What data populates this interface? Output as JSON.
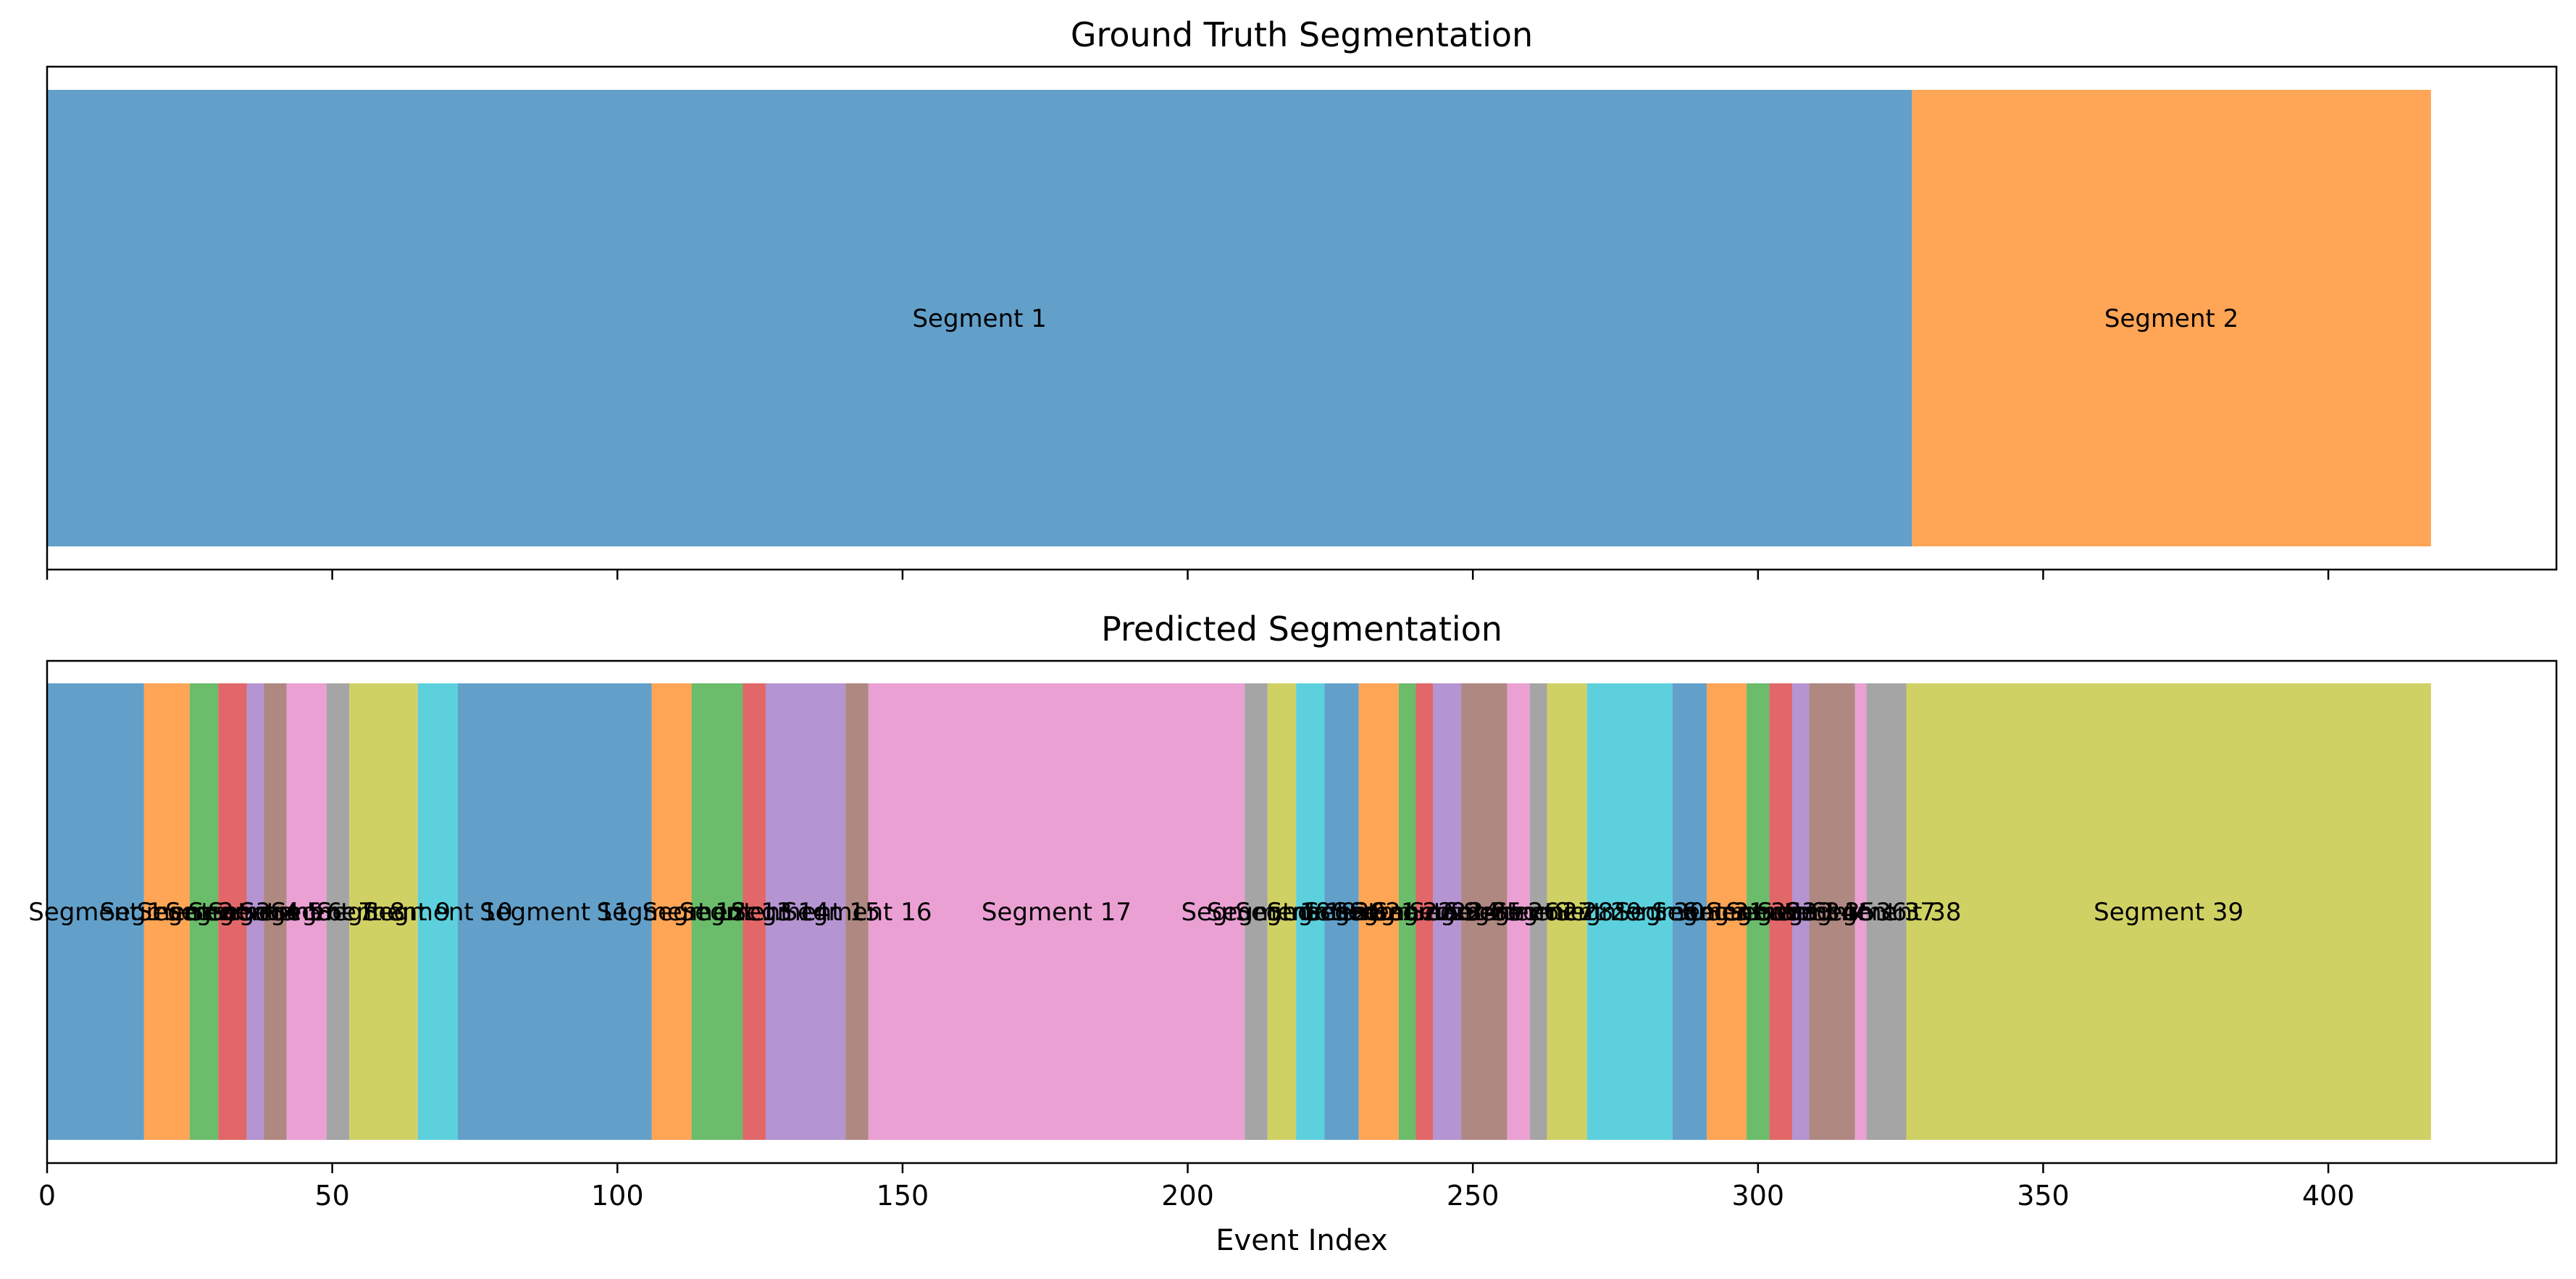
{
  "chart_data": [
    {
      "type": "bar",
      "title": "Ground Truth Segmentation",
      "xlabel": "",
      "xlim": [
        0,
        440
      ],
      "segments": [
        {
          "label": "Segment 1",
          "start": 0,
          "end": 327,
          "color": "#1f77b4"
        },
        {
          "label": "Segment 2",
          "start": 327,
          "end": 418,
          "color": "#ff7f0e"
        }
      ]
    },
    {
      "type": "bar",
      "title": "Predicted Segmentation",
      "xlabel": "Event Index",
      "xlim": [
        0,
        440
      ],
      "xticks": [
        "0",
        "50",
        "100",
        "150",
        "200",
        "250",
        "300",
        "350",
        "400"
      ],
      "segments": [
        {
          "label": "Segment 1",
          "start": 0,
          "end": 17,
          "color": "#1f77b4"
        },
        {
          "label": "Segment 2",
          "start": 17,
          "end": 25,
          "color": "#ff7f0e"
        },
        {
          "label": "Segment 3",
          "start": 25,
          "end": 30,
          "color": "#2ca02c"
        },
        {
          "label": "Segment 4",
          "start": 30,
          "end": 35,
          "color": "#d62728"
        },
        {
          "label": "Segment 5",
          "start": 35,
          "end": 38,
          "color": "#9467bd"
        },
        {
          "label": "Segment 6",
          "start": 38,
          "end": 42,
          "color": "#8c564b"
        },
        {
          "label": "Segment 7",
          "start": 42,
          "end": 49,
          "color": "#e377c2"
        },
        {
          "label": "Segment 8",
          "start": 49,
          "end": 53,
          "color": "#7f7f7f"
        },
        {
          "label": "Segment 9",
          "start": 53,
          "end": 65,
          "color": "#bcbd22"
        },
        {
          "label": "Segment 10",
          "start": 65,
          "end": 72,
          "color": "#17becf"
        },
        {
          "label": "Segment 11",
          "start": 72,
          "end": 106,
          "color": "#1f77b4"
        },
        {
          "label": "Segment 12",
          "start": 106,
          "end": 113,
          "color": "#ff7f0e"
        },
        {
          "label": "Segment 13",
          "start": 113,
          "end": 122,
          "color": "#2ca02c"
        },
        {
          "label": "Segment 14",
          "start": 122,
          "end": 126,
          "color": "#d62728"
        },
        {
          "label": "Segment 15",
          "start": 126,
          "end": 140,
          "color": "#9467bd"
        },
        {
          "label": "Segment 16",
          "start": 140,
          "end": 144,
          "color": "#8c564b"
        },
        {
          "label": "Segment 17",
          "start": 144,
          "end": 210,
          "color": "#e377c2"
        },
        {
          "label": "Segment 18",
          "start": 210,
          "end": 214,
          "color": "#7f7f7f"
        },
        {
          "label": "Segment 19",
          "start": 214,
          "end": 219,
          "color": "#bcbd22"
        },
        {
          "label": "Segment 20",
          "start": 219,
          "end": 224,
          "color": "#17becf"
        },
        {
          "label": "Segment 21",
          "start": 224,
          "end": 230,
          "color": "#1f77b4"
        },
        {
          "label": "Segment 22",
          "start": 230,
          "end": 237,
          "color": "#ff7f0e"
        },
        {
          "label": "Segment 23",
          "start": 237,
          "end": 240,
          "color": "#2ca02c"
        },
        {
          "label": "Segment 24",
          "start": 240,
          "end": 243,
          "color": "#d62728"
        },
        {
          "label": "Segment 25",
          "start": 243,
          "end": 248,
          "color": "#9467bd"
        },
        {
          "label": "Segment 26",
          "start": 248,
          "end": 256,
          "color": "#8c564b"
        },
        {
          "label": "Segment 27",
          "start": 256,
          "end": 260,
          "color": "#e377c2"
        },
        {
          "label": "Segment 28",
          "start": 260,
          "end": 263,
          "color": "#7f7f7f"
        },
        {
          "label": "Segment 29",
          "start": 263,
          "end": 270,
          "color": "#bcbd22"
        },
        {
          "label": "Segment 30",
          "start": 270,
          "end": 285,
          "color": "#17becf"
        },
        {
          "label": "Segment 31",
          "start": 285,
          "end": 291,
          "color": "#1f77b4"
        },
        {
          "label": "Segment 32",
          "start": 291,
          "end": 298,
          "color": "#ff7f0e"
        },
        {
          "label": "Segment 33",
          "start": 298,
          "end": 302,
          "color": "#2ca02c"
        },
        {
          "label": "Segment 34",
          "start": 302,
          "end": 306,
          "color": "#d62728"
        },
        {
          "label": "Segment 35",
          "start": 306,
          "end": 309,
          "color": "#9467bd"
        },
        {
          "label": "Segment 36",
          "start": 309,
          "end": 317,
          "color": "#8c564b"
        },
        {
          "label": "Segment 37",
          "start": 317,
          "end": 319,
          "color": "#e377c2"
        },
        {
          "label": "Segment 38",
          "start": 319,
          "end": 326,
          "color": "#7f7f7f"
        },
        {
          "label": "Segment 39",
          "start": 326,
          "end": 418,
          "color": "#bcbd22"
        }
      ]
    }
  ]
}
